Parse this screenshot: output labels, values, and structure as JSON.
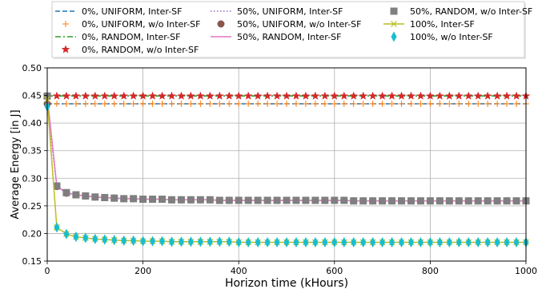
{
  "chart_data": {
    "type": "line",
    "title": "",
    "xlabel": "Horizon time (kHours)",
    "ylabel": "Average Energy [in J]",
    "xlim": [
      0,
      1000
    ],
    "ylim": [
      0.15,
      0.5
    ],
    "xticks": [
      0,
      200,
      400,
      600,
      800,
      1000
    ],
    "xtick_labels": [
      "0",
      "200",
      "400",
      "600",
      "800",
      "1000"
    ],
    "yticks": [
      0.15,
      0.2,
      0.25,
      0.3,
      0.35,
      0.4,
      0.45,
      0.5
    ],
    "ytick_labels": [
      "0.15",
      "0.20",
      "0.25",
      "0.30",
      "0.35",
      "0.40",
      "0.45",
      "0.50"
    ],
    "grid": true,
    "legend_position": "top",
    "x": [
      0,
      20,
      40,
      60,
      80,
      100,
      120,
      140,
      160,
      180,
      200,
      220,
      240,
      260,
      280,
      300,
      320,
      340,
      360,
      380,
      400,
      420,
      440,
      460,
      480,
      500,
      520,
      540,
      560,
      580,
      600,
      620,
      640,
      660,
      680,
      700,
      720,
      740,
      760,
      780,
      800,
      820,
      840,
      860,
      880,
      900,
      920,
      940,
      960,
      980,
      1000
    ],
    "series": [
      {
        "name": "0%, UNIFORM, Inter-SF",
        "color": "#1f77b4",
        "line": "dashed",
        "marker": "none",
        "values": [
          0.435,
          0.435,
          0.435,
          0.435,
          0.435,
          0.435,
          0.435,
          0.435,
          0.435,
          0.435,
          0.435,
          0.435,
          0.435,
          0.435,
          0.435,
          0.435,
          0.435,
          0.435,
          0.435,
          0.435,
          0.435,
          0.435,
          0.435,
          0.435,
          0.435,
          0.435,
          0.435,
          0.435,
          0.435,
          0.435,
          0.435,
          0.435,
          0.435,
          0.435,
          0.435,
          0.435,
          0.435,
          0.435,
          0.435,
          0.435,
          0.435,
          0.435,
          0.435,
          0.435,
          0.435,
          0.435,
          0.435,
          0.435,
          0.435,
          0.435,
          0.435
        ]
      },
      {
        "name": "0%, UNIFORM, w/o Inter-SF",
        "color": "#ff7f0e",
        "line": "none",
        "marker": "plus",
        "values": [
          0.435,
          0.435,
          0.435,
          0.435,
          0.435,
          0.435,
          0.435,
          0.435,
          0.435,
          0.435,
          0.435,
          0.435,
          0.435,
          0.435,
          0.435,
          0.435,
          0.435,
          0.435,
          0.435,
          0.435,
          0.435,
          0.435,
          0.435,
          0.435,
          0.435,
          0.435,
          0.435,
          0.435,
          0.435,
          0.435,
          0.435,
          0.435,
          0.435,
          0.435,
          0.435,
          0.435,
          0.435,
          0.435,
          0.435,
          0.435,
          0.435,
          0.435,
          0.435,
          0.435,
          0.435,
          0.435,
          0.435,
          0.435,
          0.435,
          0.435,
          0.435
        ]
      },
      {
        "name": "0%, RANDOM, Inter-SF",
        "color": "#2ca02c",
        "line": "dashdot",
        "marker": "none",
        "values": [
          0.449,
          0.449,
          0.449,
          0.449,
          0.449,
          0.449,
          0.449,
          0.449,
          0.449,
          0.449,
          0.449,
          0.449,
          0.449,
          0.449,
          0.449,
          0.449,
          0.449,
          0.449,
          0.449,
          0.449,
          0.449,
          0.449,
          0.449,
          0.449,
          0.449,
          0.449,
          0.449,
          0.449,
          0.449,
          0.449,
          0.449,
          0.449,
          0.449,
          0.449,
          0.449,
          0.449,
          0.449,
          0.449,
          0.449,
          0.449,
          0.449,
          0.449,
          0.449,
          0.449,
          0.449,
          0.449,
          0.449,
          0.449,
          0.449,
          0.449,
          0.449
        ]
      },
      {
        "name": "0%, RANDOM, w/o Inter-SF",
        "color": "#d62728",
        "line": "none",
        "marker": "star",
        "values": [
          0.449,
          0.449,
          0.449,
          0.449,
          0.449,
          0.449,
          0.449,
          0.449,
          0.449,
          0.449,
          0.449,
          0.449,
          0.449,
          0.449,
          0.449,
          0.449,
          0.449,
          0.449,
          0.449,
          0.449,
          0.449,
          0.449,
          0.449,
          0.449,
          0.449,
          0.449,
          0.449,
          0.449,
          0.449,
          0.449,
          0.449,
          0.449,
          0.449,
          0.449,
          0.449,
          0.449,
          0.449,
          0.449,
          0.449,
          0.449,
          0.449,
          0.449,
          0.449,
          0.449,
          0.449,
          0.449,
          0.449,
          0.449,
          0.449,
          0.449,
          0.449
        ]
      },
      {
        "name": "50%, UNIFORM, Inter-SF",
        "color": "#9467bd",
        "line": "dotted",
        "marker": "none",
        "values": [
          0.435,
          0.285,
          0.273,
          0.27,
          0.268,
          0.266,
          0.265,
          0.264,
          0.263,
          0.263,
          0.262,
          0.262,
          0.262,
          0.261,
          0.261,
          0.261,
          0.261,
          0.261,
          0.26,
          0.26,
          0.26,
          0.26,
          0.26,
          0.26,
          0.26,
          0.26,
          0.26,
          0.26,
          0.26,
          0.26,
          0.26,
          0.26,
          0.259,
          0.259,
          0.259,
          0.259,
          0.259,
          0.259,
          0.259,
          0.259,
          0.259,
          0.259,
          0.259,
          0.259,
          0.259,
          0.259,
          0.259,
          0.259,
          0.259,
          0.259,
          0.259
        ]
      },
      {
        "name": "50%, UNIFORM, w/o Inter-SF",
        "color": "#8c564b",
        "line": "none",
        "marker": "circle",
        "values": [
          0.435,
          0.285,
          0.273,
          0.27,
          0.268,
          0.266,
          0.265,
          0.264,
          0.263,
          0.263,
          0.262,
          0.262,
          0.262,
          0.261,
          0.261,
          0.261,
          0.261,
          0.261,
          0.26,
          0.26,
          0.26,
          0.26,
          0.26,
          0.26,
          0.26,
          0.26,
          0.26,
          0.26,
          0.26,
          0.26,
          0.26,
          0.26,
          0.259,
          0.259,
          0.259,
          0.259,
          0.259,
          0.259,
          0.259,
          0.259,
          0.259,
          0.259,
          0.259,
          0.259,
          0.259,
          0.259,
          0.259,
          0.259,
          0.259,
          0.259,
          0.259
        ]
      },
      {
        "name": "50%, RANDOM, Inter-SF",
        "color": "#e377c2",
        "line": "solid",
        "marker": "none",
        "values": [
          0.449,
          0.286,
          0.274,
          0.27,
          0.268,
          0.266,
          0.265,
          0.264,
          0.263,
          0.263,
          0.262,
          0.262,
          0.262,
          0.261,
          0.261,
          0.261,
          0.261,
          0.261,
          0.26,
          0.26,
          0.26,
          0.26,
          0.26,
          0.26,
          0.26,
          0.26,
          0.26,
          0.26,
          0.26,
          0.26,
          0.26,
          0.26,
          0.259,
          0.259,
          0.259,
          0.259,
          0.259,
          0.259,
          0.259,
          0.259,
          0.259,
          0.259,
          0.259,
          0.259,
          0.259,
          0.259,
          0.259,
          0.259,
          0.259,
          0.259,
          0.259
        ]
      },
      {
        "name": "50%, RANDOM, w/o Inter-SF",
        "color": "#7f7f7f",
        "line": "none",
        "marker": "square",
        "values": [
          0.449,
          0.286,
          0.274,
          0.27,
          0.268,
          0.266,
          0.265,
          0.264,
          0.263,
          0.263,
          0.262,
          0.262,
          0.262,
          0.261,
          0.261,
          0.261,
          0.261,
          0.261,
          0.26,
          0.26,
          0.26,
          0.26,
          0.26,
          0.26,
          0.26,
          0.26,
          0.26,
          0.26,
          0.26,
          0.26,
          0.26,
          0.26,
          0.259,
          0.259,
          0.259,
          0.259,
          0.259,
          0.259,
          0.259,
          0.259,
          0.259,
          0.259,
          0.259,
          0.259,
          0.259,
          0.259,
          0.259,
          0.259,
          0.259,
          0.259,
          0.259
        ]
      },
      {
        "name": "100%, Inter-SF",
        "color": "#bcbd22",
        "line": "solid",
        "marker": "x",
        "values": [
          0.443,
          0.211,
          0.199,
          0.194,
          0.192,
          0.19,
          0.189,
          0.188,
          0.187,
          0.187,
          0.186,
          0.186,
          0.186,
          0.185,
          0.185,
          0.185,
          0.185,
          0.185,
          0.185,
          0.185,
          0.184,
          0.184,
          0.184,
          0.184,
          0.184,
          0.184,
          0.184,
          0.184,
          0.184,
          0.184,
          0.184,
          0.184,
          0.184,
          0.184,
          0.184,
          0.184,
          0.184,
          0.184,
          0.184,
          0.184,
          0.184,
          0.184,
          0.184,
          0.184,
          0.184,
          0.184,
          0.184,
          0.184,
          0.184,
          0.184,
          0.184
        ]
      },
      {
        "name": "100%, w/o Inter-SF",
        "color": "#17becf",
        "line": "none",
        "marker": "thin_diamond",
        "values": [
          0.43,
          0.211,
          0.199,
          0.194,
          0.192,
          0.19,
          0.189,
          0.188,
          0.187,
          0.187,
          0.186,
          0.186,
          0.186,
          0.185,
          0.185,
          0.185,
          0.185,
          0.185,
          0.185,
          0.185,
          0.184,
          0.184,
          0.184,
          0.184,
          0.184,
          0.184,
          0.184,
          0.184,
          0.184,
          0.184,
          0.184,
          0.184,
          0.184,
          0.184,
          0.184,
          0.184,
          0.184,
          0.184,
          0.184,
          0.184,
          0.184,
          0.184,
          0.184,
          0.184,
          0.184,
          0.184,
          0.184,
          0.184,
          0.184,
          0.184,
          0.184
        ]
      }
    ]
  }
}
